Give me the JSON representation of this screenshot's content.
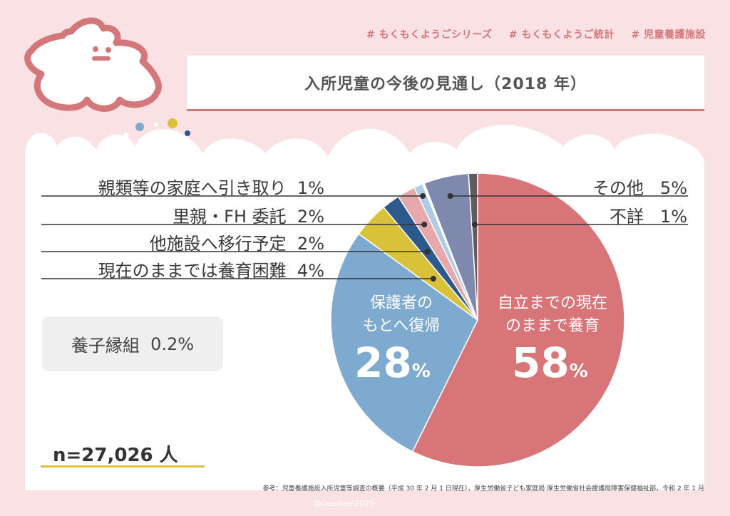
{
  "header": {
    "tags": [
      "# もくもくようごシリーズ",
      "# もくもくようご統計",
      "# 児童養護施設"
    ],
    "title": "入所児童の今後の見通し（2018 年）"
  },
  "colors": {
    "background": "#fae2e4",
    "accent": "#d4777a",
    "panel": "#ffffff"
  },
  "chart_data": {
    "type": "pie",
    "title": "入所児童の今後の見通し（2018 年）",
    "start": "top",
    "direction": "clockwise",
    "slices": [
      {
        "label": "自立までの現在のままで養育",
        "label_lines": [
          "自立までの現在",
          "のままで養育"
        ],
        "value": 58,
        "display": "58",
        "unit": "%",
        "color": "#d77578"
      },
      {
        "label": "保護者のもとへ復帰",
        "label_lines": [
          "保護者の",
          "もとへ復帰"
        ],
        "value": 28,
        "display": "28",
        "unit": "%",
        "color": "#7eaad0"
      },
      {
        "label": "現在のままでは養育困難",
        "value": 4,
        "display": "4%",
        "color": "#d9c23a"
      },
      {
        "label": "他施設へ移行予定",
        "value": 2,
        "display": "2%",
        "color": "#2c5a8c"
      },
      {
        "label": "里親・FH 委託",
        "value": 2,
        "display": "2%",
        "color": "#e6a8aa"
      },
      {
        "label": "親類等の家庭へ引き取り",
        "value": 1,
        "display": "1%",
        "color": "#b2cbe5"
      },
      {
        "label": "養子縁組",
        "value": 0.2,
        "display": "0.2%",
        "color": "#ffffff"
      },
      {
        "label": "その他",
        "value": 5,
        "display": "5%",
        "color": "#7f89ad"
      },
      {
        "label": "不詳",
        "value": 1,
        "display": "1%",
        "color": "#5e5e5e"
      }
    ],
    "n": "n=27,026 人"
  },
  "footnote": "参考：児童養護施設入所児童等調査の概要（平成 30 年 2 月 1 日現在），厚生労働省子ども家庭局 厚生労働省社会援護局障害保健福祉部，令和 2 年 1 月",
  "credit": "@tasukeai2025"
}
